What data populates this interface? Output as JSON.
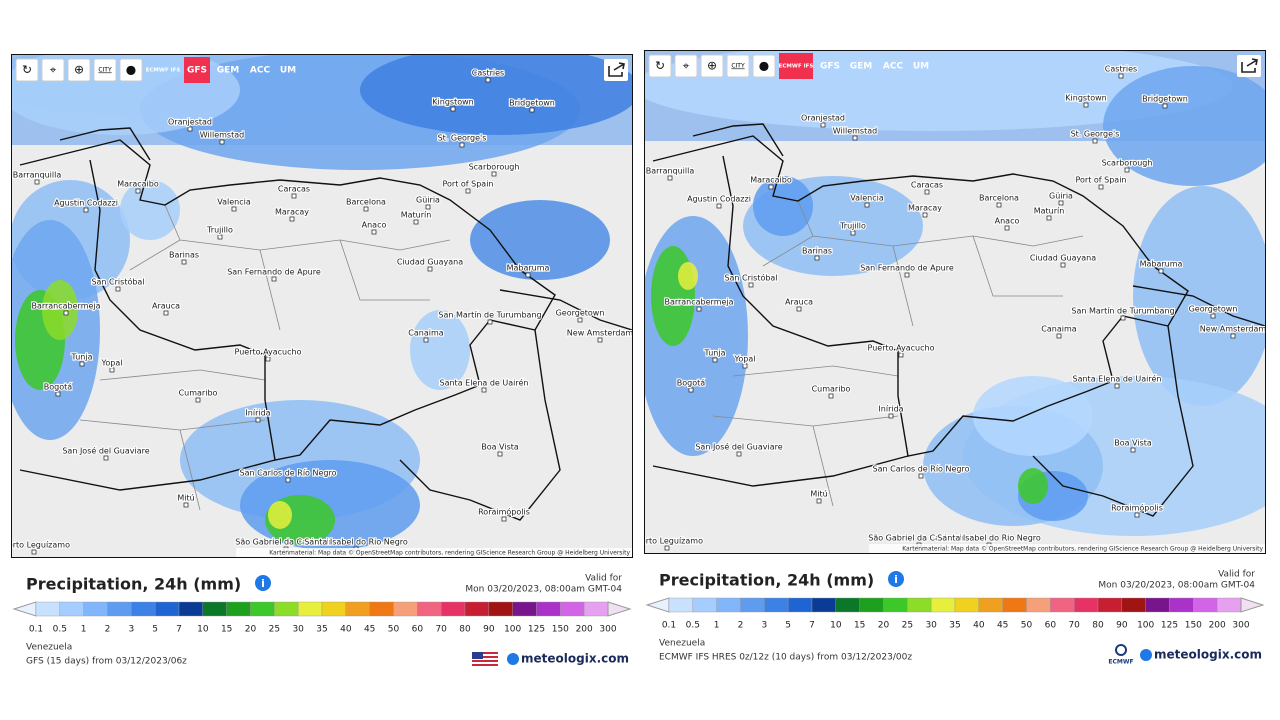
{
  "legend": {
    "ticks": [
      0.1,
      0.5,
      1,
      2,
      3,
      5,
      7,
      10,
      15,
      20,
      25,
      30,
      35,
      40,
      45,
      50,
      60,
      70,
      80,
      90,
      100,
      125,
      150,
      200,
      300
    ],
    "colors": [
      "#c8e1ff",
      "#a5cdff",
      "#82b6fa",
      "#5e9cf0",
      "#3c82e6",
      "#1e64d2",
      "#0a3c96",
      "#0a7828",
      "#1ea01e",
      "#3cc828",
      "#8cdc28",
      "#e6f03c",
      "#f0d21e",
      "#f0a01e",
      "#f07814",
      "#f5a078",
      "#f06482",
      "#e63264",
      "#c81e32",
      "#a01414",
      "#78148c",
      "#aa32c8",
      "#d264e6",
      "#e6a0f0"
    ]
  },
  "panels": [
    {
      "toolbar": {
        "city": "CITY",
        "models": [
          "ECMWF IFS",
          "GFS",
          "GEM",
          "ACC",
          "UM"
        ],
        "active": 1
      },
      "cities": [
        "Castries",
        "Kingstown",
        "Bridgetown",
        "Oranjestad",
        "Willemstad",
        "St. George's",
        "Scarborough",
        "Maracaibo",
        "Port of Spain",
        "Caracas",
        "Barranquilla",
        "Valencia",
        "Barcelona",
        "Güiria",
        "Agustin Codazzi",
        "Maracay",
        "Maturín",
        "Trujillo",
        "Anaco",
        "Barinas",
        "Ciudad Guayana",
        "Mabaruma",
        "San Fernando de Apure",
        "San Cristóbal",
        "Arauca",
        "Barrancabermeja",
        "San Martín de Turumbang",
        "Georgetown",
        "New Amsterdam",
        "Canaima",
        "Tunja",
        "Puerto Ayacucho",
        "Yopal",
        "Santa Elena de Uairén",
        "Bogotá",
        "Cumaribo",
        "Inírida",
        "Boa Vista",
        "San José del Guaviare",
        "San Carlos de Río Negro",
        "Mitú",
        "Roraimópolis",
        "São Gabriel da Cachoeira",
        "Santa Isabel do Rio Negro",
        "Puerto Leguízamo"
      ],
      "attribution": "Kartenmaterial: Map data © OpenStreetMap contributors, rendering GIScience Research Group @ Heidelberg University",
      "title": "Precipitation, 24h (mm)",
      "valid_label": "Valid for",
      "valid_time": "Mon 03/20/2023, 08:00am GMT-04",
      "region": "Venezuela",
      "source": "GFS (15 days) from 03/12/2023/06z",
      "brand": "meteologix.com"
    },
    {
      "toolbar": {
        "city": "CITY",
        "models": [
          "ECMWF IFS",
          "GFS",
          "GEM",
          "ACC",
          "UM"
        ],
        "active": 0
      },
      "cities": [
        "Castries",
        "Kingstown",
        "Bridgetown",
        "Oranjestad",
        "Willemstad",
        "St. George's",
        "Scarborough",
        "Maracaibo",
        "Port of Spain",
        "Caracas",
        "Barranquilla",
        "Valencia",
        "Barcelona",
        "Güiria",
        "Agustin Codazzi",
        "Maracay",
        "Maturín",
        "Trujillo",
        "Anaco",
        "Barinas",
        "Ciudad Guayana",
        "Mabaruma",
        "San Fernando de Apure",
        "San Cristóbal",
        "Arauca",
        "Barrancabermeja",
        "San Martín de Turumbang",
        "Georgetown",
        "New Amsterdam",
        "Canaima",
        "Tunja",
        "Puerto Ayacucho",
        "Yopal",
        "Santa Elena de Uairén",
        "Bogotá",
        "Cumaribo",
        "Inírida",
        "Boa Vista",
        "San José del Guaviare",
        "San Carlos de Río Negro",
        "Mitú",
        "Roraimópolis",
        "São Gabriel da Cachoeira",
        "Santa Isabel do Rio Negro",
        "Puerto Leguízamo"
      ],
      "attribution": "Kartenmaterial: Map data © OpenStreetMap contributors, rendering GIScience Research Group @ Heidelberg University",
      "title": "Precipitation, 24h (mm)",
      "valid_label": "Valid for",
      "valid_time": "Mon 03/20/2023, 08:00am GMT-04",
      "region": "Venezuela",
      "source": "ECMWF IFS HRES 0z/12z (10 days) from 03/12/2023/00z",
      "brand": "meteologix.com",
      "logo": "ECMWF"
    }
  ]
}
